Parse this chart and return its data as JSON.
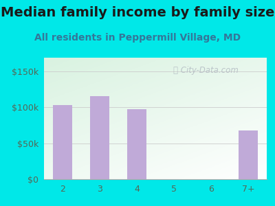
{
  "title": "Median family income by family size",
  "subtitle": "All residents in Peppermill Village, MD",
  "categories": [
    "2",
    "3",
    "4",
    "5",
    "6",
    "7+"
  ],
  "values": [
    103000,
    115000,
    97000,
    0,
    0,
    68000
  ],
  "bar_color": "#c0aad8",
  "outer_bg": "#00e8e8",
  "plot_bg_topleft": "#d8f0e0",
  "plot_bg_topright": "#e8f8f0",
  "plot_bg_bottom": "#f8fff8",
  "title_color": "#1a1a1a",
  "subtitle_color": "#337799",
  "ytick_color": "#556655",
  "xtick_color": "#556655",
  "yticks": [
    0,
    50000,
    100000,
    150000
  ],
  "ytick_labels": [
    "$0",
    "$50k",
    "$100k",
    "$150k"
  ],
  "ylim": [
    0,
    168750
  ],
  "watermark": "City-Data.com",
  "title_fontsize": 14,
  "subtitle_fontsize": 10,
  "tick_fontsize": 9
}
